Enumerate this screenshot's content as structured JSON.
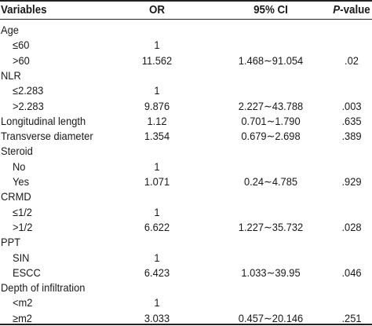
{
  "header": {
    "variables": "Variables",
    "or": "OR",
    "ci": "95% CI",
    "p_italic": "P",
    "p_rest": "-value"
  },
  "rows": [
    {
      "label": "Age",
      "indent": false,
      "or": "",
      "ci": "",
      "p": ""
    },
    {
      "label": "≤60",
      "indent": true,
      "or": "1",
      "ci": "",
      "p": ""
    },
    {
      "label": ">60",
      "indent": true,
      "or": "11.562",
      "ci": "1.468∼91.054",
      "p": ".02"
    },
    {
      "label": "NLR",
      "indent": false,
      "or": "",
      "ci": "",
      "p": ""
    },
    {
      "label": "≤2.283",
      "indent": true,
      "or": "1",
      "ci": "",
      "p": ""
    },
    {
      "label": ">2.283",
      "indent": true,
      "or": "9.876",
      "ci": "2.227∼43.788",
      "p": ".003"
    },
    {
      "label": "Longitudinal length",
      "indent": false,
      "or": "1.12",
      "ci": "0.701∼1.790",
      "p": ".635"
    },
    {
      "label": "Transverse diameter",
      "indent": false,
      "or": "1.354",
      "ci": "0.679∼2.698",
      "p": ".389"
    },
    {
      "label": "Steroid",
      "indent": false,
      "or": "",
      "ci": "",
      "p": ""
    },
    {
      "label": "No",
      "indent": true,
      "or": "1",
      "ci": "",
      "p": ""
    },
    {
      "label": "Yes",
      "indent": true,
      "or": "1.071",
      "ci": "0.24∼4.785",
      "p": ".929"
    },
    {
      "label": "CRMD",
      "indent": false,
      "or": "",
      "ci": "",
      "p": ""
    },
    {
      "label": "≤1/2",
      "indent": true,
      "or": "1",
      "ci": "",
      "p": ""
    },
    {
      "label": ">1/2",
      "indent": true,
      "or": "6.622",
      "ci": "1.227∼35.732",
      "p": ".028"
    },
    {
      "label": "PPT",
      "indent": false,
      "or": "",
      "ci": "",
      "p": ""
    },
    {
      "label": "SIN",
      "indent": true,
      "or": "1",
      "ci": "",
      "p": ""
    },
    {
      "label": "ESCC",
      "indent": true,
      "or": "6.423",
      "ci": "1.033∼39.95",
      "p": ".046"
    },
    {
      "label": "Depth of infiltration",
      "indent": false,
      "or": "",
      "ci": "",
      "p": ""
    },
    {
      "label": "<m2",
      "indent": true,
      "or": "1",
      "ci": "",
      "p": ""
    },
    {
      "label": "≥m2",
      "indent": true,
      "or": "3.033",
      "ci": "0.457∼20.146",
      "p": ".251"
    }
  ]
}
